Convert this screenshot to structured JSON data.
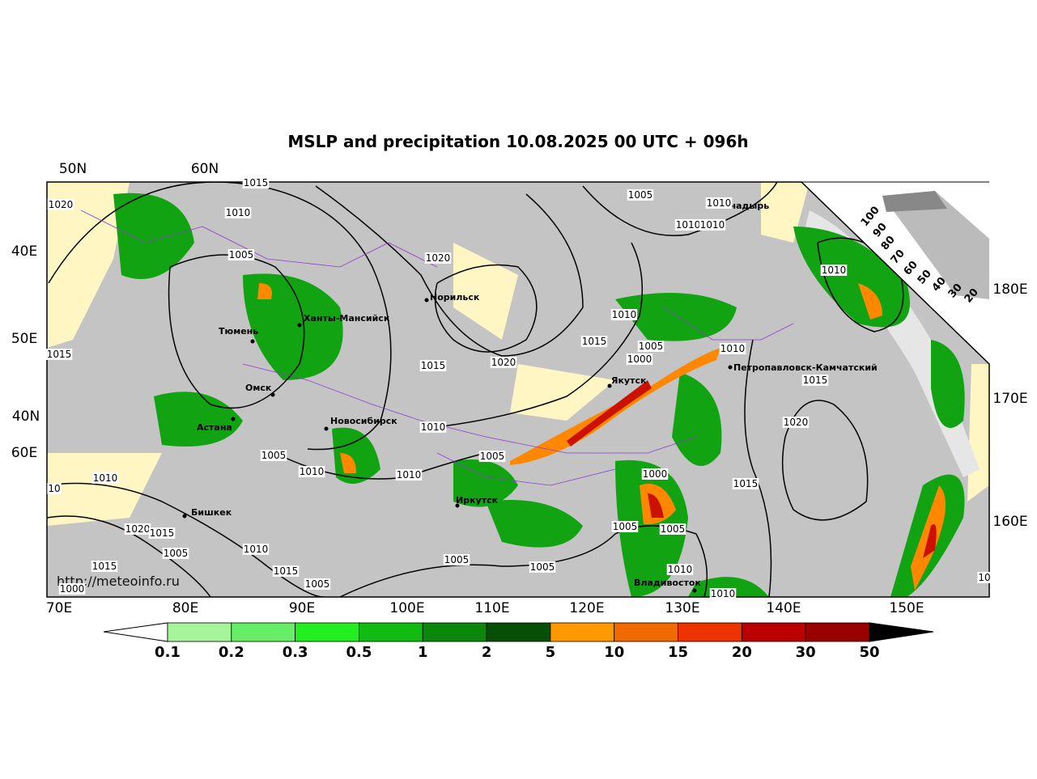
{
  "title": "MSLP and precipitation 10.08.2025 00 UTC + 096h",
  "watermark": "http://meteoinfo.ru",
  "grid_labels": {
    "top": [
      "50N",
      "60N"
    ],
    "left": [
      "40E",
      "50E",
      "40N",
      "60E"
    ],
    "right": [
      "180E",
      "170E",
      "160E"
    ],
    "bottom": [
      "70E",
      "80E",
      "90E",
      "100E",
      "110E",
      "120E",
      "130E",
      "140E",
      "150E"
    ]
  },
  "cities": [
    "Норильск",
    "Ханты-Мансийск",
    "Тюмень",
    "Омск",
    "Астана",
    "Новосибирск",
    "Якутск",
    "Петропавловск-Камчатский",
    "Анадырь",
    "Иркутск",
    "Бишкек",
    "Владивосток"
  ],
  "isobar_labels": [
    "1015",
    "1020",
    "1010",
    "1005",
    "1020",
    "1005",
    "1010",
    "1010",
    "1010",
    "1010",
    "1010",
    "1015",
    "1005",
    "1000",
    "1010",
    "1015",
    "1015",
    "1020",
    "1015",
    "1010",
    "1020",
    "1005",
    "1005",
    "1010",
    "1010",
    "1000",
    "1010",
    "10",
    "1015",
    "1020",
    "1015",
    "1005",
    "1005",
    "1010",
    "1005",
    "1005",
    "1005",
    "1015",
    "1015",
    "1000",
    "1005",
    "1010",
    "1010",
    "10"
  ],
  "cloud_scale": [
    100,
    90,
    80,
    70,
    60,
    50,
    40,
    30,
    20
  ],
  "colorbar": {
    "ticks": [
      0.1,
      0.2,
      0.3,
      0.5,
      1,
      2,
      5,
      10,
      15,
      20,
      30,
      50
    ],
    "colors": [
      "#a6f59b",
      "#66ee66",
      "#22ee22",
      "#11bb11",
      "#0b880b",
      "#064f06",
      "#ff9900",
      "#f06a00",
      "#ee3300",
      "#bb0000",
      "#990000"
    ]
  }
}
